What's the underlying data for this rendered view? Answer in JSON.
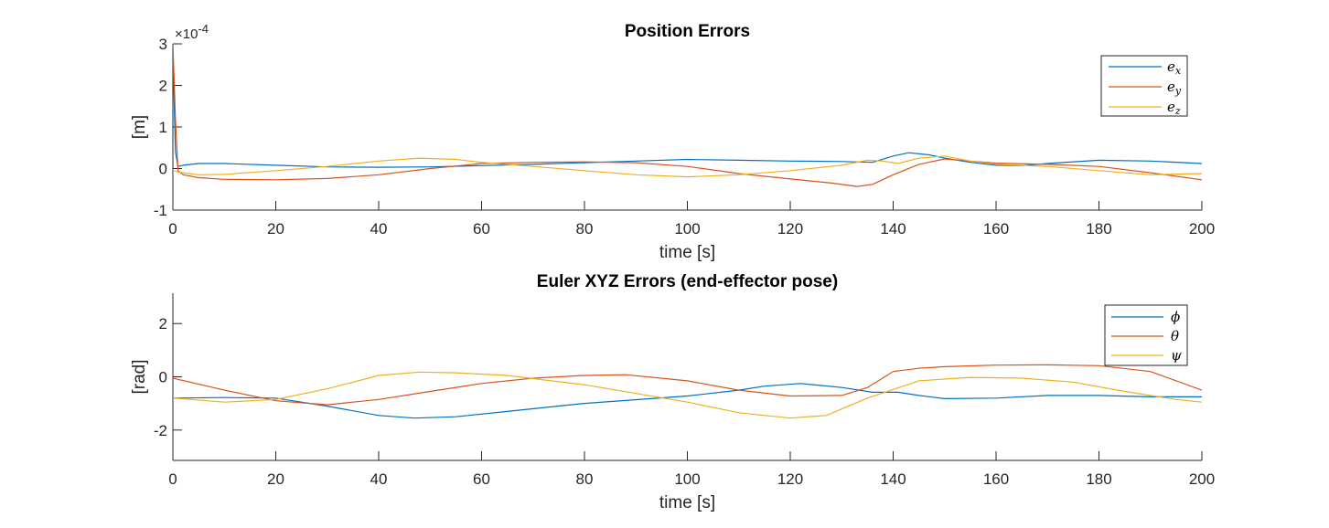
{
  "chart_data": [
    {
      "type": "line",
      "title": "Position Errors",
      "xlabel": "time [s]",
      "ylabel": "[m]",
      "y_multiplier": "×10",
      "y_multiplier_exp": "-4",
      "xlim": [
        0,
        200
      ],
      "ylim": [
        -1,
        3
      ],
      "xticks": [
        0,
        20,
        40,
        60,
        80,
        100,
        120,
        140,
        160,
        180,
        200
      ],
      "yticks": [
        -1,
        0,
        1,
        2,
        3
      ],
      "grid": false,
      "legend_position": "top-right",
      "series": [
        {
          "name": "e",
          "sub": "x",
          "color": "#0072BD",
          "points": [
            [
              0,
              2.9
            ],
            [
              0.5,
              0.4
            ],
            [
              1,
              0.05
            ],
            [
              2,
              0.08
            ],
            [
              5,
              0.12
            ],
            [
              10,
              0.12
            ],
            [
              20,
              0.08
            ],
            [
              30,
              0.04
            ],
            [
              40,
              0.03
            ],
            [
              50,
              0.04
            ],
            [
              60,
              0.07
            ],
            [
              70,
              0.1
            ],
            [
              80,
              0.14
            ],
            [
              90,
              0.18
            ],
            [
              100,
              0.22
            ],
            [
              110,
              0.2
            ],
            [
              120,
              0.18
            ],
            [
              130,
              0.17
            ],
            [
              136,
              0.15
            ],
            [
              140,
              0.3
            ],
            [
              143,
              0.38
            ],
            [
              147,
              0.33
            ],
            [
              150,
              0.25
            ],
            [
              155,
              0.15
            ],
            [
              160,
              0.08
            ],
            [
              165,
              0.07
            ],
            [
              170,
              0.12
            ],
            [
              180,
              0.2
            ],
            [
              190,
              0.18
            ],
            [
              200,
              0.12
            ]
          ]
        },
        {
          "name": "e",
          "sub": "y",
          "color": "#D95319",
          "points": [
            [
              0,
              3.0
            ],
            [
              0.5,
              1.2
            ],
            [
              1,
              -0.05
            ],
            [
              2,
              -0.15
            ],
            [
              5,
              -0.22
            ],
            [
              10,
              -0.26
            ],
            [
              20,
              -0.27
            ],
            [
              30,
              -0.24
            ],
            [
              40,
              -0.15
            ],
            [
              50,
              0.0
            ],
            [
              60,
              0.12
            ],
            [
              70,
              0.15
            ],
            [
              80,
              0.16
            ],
            [
              90,
              0.14
            ],
            [
              100,
              0.05
            ],
            [
              110,
              -0.12
            ],
            [
              120,
              -0.25
            ],
            [
              128,
              -0.35
            ],
            [
              133,
              -0.43
            ],
            [
              136,
              -0.38
            ],
            [
              140,
              -0.15
            ],
            [
              145,
              0.1
            ],
            [
              150,
              0.23
            ],
            [
              155,
              0.18
            ],
            [
              160,
              0.13
            ],
            [
              170,
              0.1
            ],
            [
              180,
              0.05
            ],
            [
              190,
              -0.1
            ],
            [
              200,
              -0.27
            ]
          ]
        },
        {
          "name": "e",
          "sub": "z",
          "color": "#EDB120",
          "points": [
            [
              0,
              -0.05
            ],
            [
              1,
              -0.08
            ],
            [
              2,
              -0.1
            ],
            [
              5,
              -0.15
            ],
            [
              10,
              -0.14
            ],
            [
              20,
              -0.05
            ],
            [
              30,
              0.05
            ],
            [
              40,
              0.18
            ],
            [
              48,
              0.25
            ],
            [
              55,
              0.22
            ],
            [
              60,
              0.15
            ],
            [
              70,
              0.05
            ],
            [
              80,
              -0.05
            ],
            [
              90,
              -0.15
            ],
            [
              100,
              -0.2
            ],
            [
              110,
              -0.15
            ],
            [
              120,
              -0.05
            ],
            [
              130,
              0.08
            ],
            [
              135,
              0.2
            ],
            [
              138,
              0.18
            ],
            [
              141,
              0.12
            ],
            [
              145,
              0.25
            ],
            [
              150,
              0.3
            ],
            [
              155,
              0.18
            ],
            [
              160,
              0.1
            ],
            [
              170,
              0.05
            ],
            [
              180,
              -0.05
            ],
            [
              190,
              -0.15
            ],
            [
              200,
              -0.12
            ]
          ]
        }
      ]
    },
    {
      "type": "line",
      "title": "Euler XYZ Errors (end-effector pose)",
      "xlabel": "time [s]",
      "ylabel": "[rad]",
      "xlim": [
        0,
        200
      ],
      "ylim": [
        -3.14,
        3.14
      ],
      "xticks": [
        0,
        20,
        40,
        60,
        80,
        100,
        120,
        140,
        160,
        180,
        200
      ],
      "yticks": [
        -2,
        0,
        2
      ],
      "grid": false,
      "legend_position": "top-right",
      "series": [
        {
          "name": "ϕ",
          "sub": "",
          "color": "#0072BD",
          "points": [
            [
              0,
              -0.8
            ],
            [
              10,
              -0.78
            ],
            [
              20,
              -0.8
            ],
            [
              30,
              -1.1
            ],
            [
              40,
              -1.45
            ],
            [
              47,
              -1.55
            ],
            [
              55,
              -1.5
            ],
            [
              65,
              -1.3
            ],
            [
              80,
              -1.0
            ],
            [
              100,
              -0.72
            ],
            [
              110,
              -0.5
            ],
            [
              115,
              -0.35
            ],
            [
              122,
              -0.25
            ],
            [
              130,
              -0.4
            ],
            [
              136,
              -0.58
            ],
            [
              141,
              -0.58
            ],
            [
              145,
              -0.7
            ],
            [
              150,
              -0.82
            ],
            [
              160,
              -0.8
            ],
            [
              170,
              -0.7
            ],
            [
              180,
              -0.7
            ],
            [
              190,
              -0.75
            ],
            [
              200,
              -0.75
            ]
          ]
        },
        {
          "name": "θ",
          "sub": "",
          "color": "#D95319",
          "points": [
            [
              0,
              -0.05
            ],
            [
              10,
              -0.5
            ],
            [
              20,
              -0.9
            ],
            [
              30,
              -1.05
            ],
            [
              40,
              -0.85
            ],
            [
              50,
              -0.55
            ],
            [
              60,
              -0.25
            ],
            [
              70,
              -0.05
            ],
            [
              80,
              0.05
            ],
            [
              88,
              0.08
            ],
            [
              100,
              -0.15
            ],
            [
              110,
              -0.5
            ],
            [
              120,
              -0.72
            ],
            [
              130,
              -0.7
            ],
            [
              135,
              -0.4
            ],
            [
              140,
              0.2
            ],
            [
              145,
              0.32
            ],
            [
              150,
              0.38
            ],
            [
              160,
              0.44
            ],
            [
              170,
              0.45
            ],
            [
              180,
              0.42
            ],
            [
              190,
              0.2
            ],
            [
              200,
              -0.5
            ]
          ]
        },
        {
          "name": "ψ",
          "sub": "",
          "color": "#EDB120",
          "points": [
            [
              0,
              -0.8
            ],
            [
              10,
              -0.95
            ],
            [
              20,
              -0.85
            ],
            [
              30,
              -0.45
            ],
            [
              40,
              0.05
            ],
            [
              48,
              0.18
            ],
            [
              55,
              0.15
            ],
            [
              65,
              0.05
            ],
            [
              80,
              -0.3
            ],
            [
              100,
              -0.95
            ],
            [
              110,
              -1.35
            ],
            [
              120,
              -1.55
            ],
            [
              127,
              -1.45
            ],
            [
              135,
              -0.8
            ],
            [
              145,
              -0.15
            ],
            [
              155,
              -0.02
            ],
            [
              165,
              -0.05
            ],
            [
              175,
              -0.2
            ],
            [
              185,
              -0.55
            ],
            [
              195,
              -0.85
            ],
            [
              200,
              -0.95
            ]
          ]
        }
      ]
    }
  ]
}
